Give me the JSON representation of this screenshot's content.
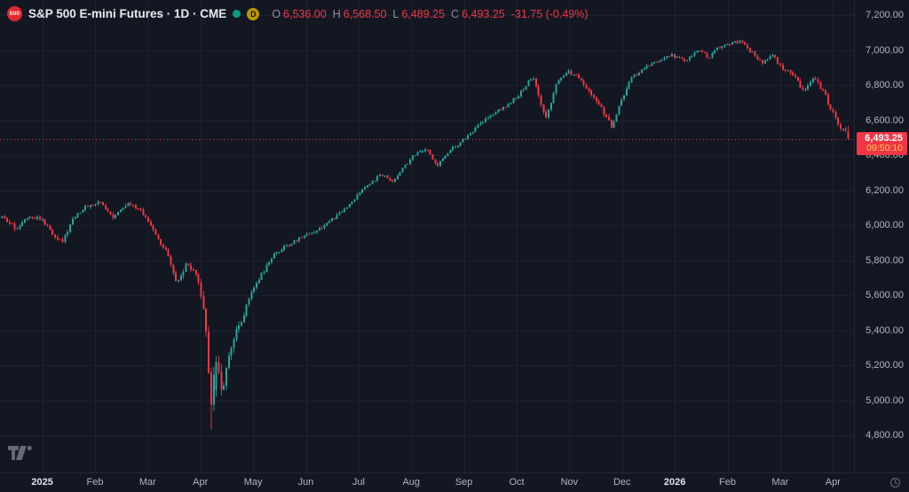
{
  "header": {
    "symbol_badge": "500",
    "title": "S&P 500 E-mini Futures · 1D · CME",
    "delayed_badge": "D",
    "ohlc": {
      "open_label": "O",
      "open": "6,536.00",
      "high_label": "H",
      "high": "6,568.50",
      "low_label": "L",
      "low": "6,489.25",
      "close_label": "C",
      "close": "6,493.25",
      "change": "-31.75 (-0.49%)"
    }
  },
  "price_axis": {
    "tick_labels": [
      "7,200.00",
      "7,000.00",
      "6,800.00",
      "6,600.00",
      "6,400.00",
      "6,200.00",
      "6,000.00",
      "5,800.00",
      "5,600.00",
      "5,400.00",
      "5,200.00",
      "5,000.00",
      "4,800.00"
    ],
    "last_price": "6,493.25",
    "countdown": "09:50:10"
  },
  "time_axis": {
    "labels": [
      "2025",
      "Feb",
      "Mar",
      "Apr",
      "May",
      "Jun",
      "Jul",
      "Aug",
      "Sep",
      "Oct",
      "Nov",
      "Dec",
      "2026",
      "Feb",
      "Mar",
      "Apr"
    ],
    "year_indices": [
      0,
      12
    ]
  },
  "colors": {
    "background": "#131722",
    "up": "#26a69a",
    "down": "#f23645",
    "grid": "#1c2230",
    "axis_text": "#b2b5be",
    "last_price_tag_bg": "#f23645",
    "countdown_text": "#ffd24a",
    "symbol_badge_bg": "#e0282e",
    "delayed_badge_bg": "#bb9800",
    "status_dot": "#089981"
  },
  "chart_data": {
    "type": "candlestick",
    "title": "S&P 500 E-mini Futures",
    "interval": "1D",
    "exchange": "CME",
    "legend_position": "top-left",
    "grid": true,
    "y_axis": {
      "min": 4800,
      "max": 7200,
      "tick_step": 200
    },
    "x_axis": {
      "start": "Dec 2024",
      "end": "Apr 2026",
      "visible_months": [
        "2025",
        "Feb",
        "Mar",
        "Apr",
        "May",
        "Jun",
        "Jul",
        "Aug",
        "Sep",
        "Oct",
        "Nov",
        "Dec",
        "2026",
        "Feb",
        "Mar",
        "Apr"
      ]
    },
    "last_bar": {
      "open": 6536.0,
      "high": 6568.5,
      "low": 6489.25,
      "close": 6493.25,
      "change": -31.75,
      "change_pct": -0.49
    },
    "last_price_line": 6493.25,
    "session_low_marker": 4832,
    "session_high_marker": 7065,
    "bar_count": 337,
    "price_path_anchors": [
      [
        -0.75,
        6040,
        26
      ],
      [
        -0.5,
        5980,
        26
      ],
      [
        -0.25,
        6060,
        24
      ],
      [
        0.0,
        6030,
        26
      ],
      [
        0.2,
        5950,
        30
      ],
      [
        0.4,
        5910,
        30
      ],
      [
        0.6,
        6050,
        26
      ],
      [
        0.85,
        6110,
        24
      ],
      [
        1.1,
        6130,
        22
      ],
      [
        1.35,
        6050,
        26
      ],
      [
        1.6,
        6120,
        24
      ],
      [
        1.85,
        6090,
        26
      ],
      [
        2.1,
        5980,
        30
      ],
      [
        2.35,
        5850,
        32
      ],
      [
        2.55,
        5660,
        36
      ],
      [
        2.75,
        5780,
        32
      ],
      [
        2.95,
        5690,
        40
      ],
      [
        3.1,
        5450,
        70
      ],
      [
        3.2,
        4990,
        120
      ],
      [
        3.3,
        5180,
        95
      ],
      [
        3.42,
        5060,
        85
      ],
      [
        3.55,
        5290,
        60
      ],
      [
        3.7,
        5400,
        45
      ],
      [
        3.85,
        5520,
        38
      ],
      [
        4.0,
        5640,
        30
      ],
      [
        4.2,
        5740,
        26
      ],
      [
        4.45,
        5850,
        24
      ],
      [
        4.7,
        5890,
        22
      ],
      [
        4.95,
        5940,
        20
      ],
      [
        5.2,
        5970,
        20
      ],
      [
        5.45,
        6020,
        20
      ],
      [
        5.7,
        6080,
        20
      ],
      [
        5.95,
        6160,
        20
      ],
      [
        6.2,
        6240,
        18
      ],
      [
        6.45,
        6290,
        18
      ],
      [
        6.65,
        6250,
        20
      ],
      [
        6.85,
        6330,
        18
      ],
      [
        7.05,
        6400,
        20
      ],
      [
        7.3,
        6430,
        18
      ],
      [
        7.5,
        6340,
        22
      ],
      [
        7.7,
        6420,
        18
      ],
      [
        7.9,
        6460,
        18
      ],
      [
        8.1,
        6520,
        18
      ],
      [
        8.35,
        6590,
        18
      ],
      [
        8.6,
        6650,
        18
      ],
      [
        8.85,
        6690,
        18
      ],
      [
        9.05,
        6750,
        20
      ],
      [
        9.3,
        6850,
        20
      ],
      [
        9.55,
        6600,
        34
      ],
      [
        9.75,
        6800,
        26
      ],
      [
        9.95,
        6880,
        22
      ],
      [
        10.15,
        6850,
        24
      ],
      [
        10.4,
        6760,
        28
      ],
      [
        10.6,
        6680,
        30
      ],
      [
        10.8,
        6560,
        34
      ],
      [
        11.0,
        6720,
        26
      ],
      [
        11.2,
        6850,
        22
      ],
      [
        11.45,
        6900,
        20
      ],
      [
        11.7,
        6940,
        18
      ],
      [
        11.95,
        6970,
        18
      ],
      [
        12.2,
        6940,
        20
      ],
      [
        12.45,
        7000,
        20
      ],
      [
        12.65,
        6960,
        22
      ],
      [
        12.85,
        7020,
        20
      ],
      [
        13.05,
        7040,
        20
      ],
      [
        13.25,
        7050,
        20
      ],
      [
        13.45,
        6990,
        24
      ],
      [
        13.65,
        6930,
        26
      ],
      [
        13.85,
        6970,
        24
      ],
      [
        14.05,
        6900,
        26
      ],
      [
        14.25,
        6850,
        26
      ],
      [
        14.45,
        6770,
        28
      ],
      [
        14.65,
        6850,
        26
      ],
      [
        14.85,
        6740,
        28
      ],
      [
        15.0,
        6640,
        30
      ],
      [
        15.15,
        6560,
        26
      ],
      [
        15.29,
        6525,
        20
      ]
    ]
  }
}
